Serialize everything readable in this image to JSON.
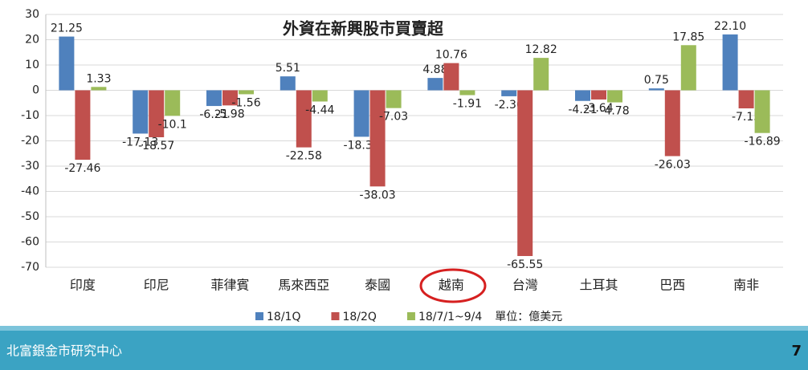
{
  "chart_data": {
    "type": "bar",
    "title": "外資在新興股市買賣超",
    "categories": [
      "印度",
      "印尼",
      "菲律賓",
      "馬來西亞",
      "泰國",
      "越南",
      "台灣",
      "土耳其",
      "巴西",
      "南非"
    ],
    "series": [
      {
        "name": "18/1Q",
        "color": "#4f81bd",
        "values": [
          21.25,
          -17.13,
          -6.21,
          5.51,
          -18.38,
          4.88,
          -2.36,
          -4.21,
          0.75,
          22.1
        ],
        "value_labels": [
          "21.25",
          "-17.13",
          "-6.21",
          "5.51",
          "-18.38",
          "4.88",
          "-2.36",
          "-4.21",
          "0.75",
          "22.10"
        ]
      },
      {
        "name": "18/2Q",
        "color": "#c0504d",
        "values": [
          -27.46,
          -18.57,
          -5.98,
          -22.58,
          -38.03,
          10.76,
          -65.55,
          -3.64,
          -26.03,
          -7.15
        ]
      },
      {
        "name": "18/7/1~9/4",
        "color": "#9bbb59",
        "values": [
          1.33,
          -10.1,
          -1.56,
          -4.44,
          -7.03,
          -1.91,
          12.82,
          -4.78,
          17.85,
          -16.89
        ]
      }
    ],
    "note": "單位：億美元",
    "ylim": [
      -70,
      30
    ],
    "yticks": [
      30,
      20,
      10,
      0,
      -10,
      -20,
      -30,
      -40,
      -50,
      -60,
      -70
    ],
    "grid": true,
    "footer": "北富銀金市研究中心",
    "page_number": "7"
  }
}
